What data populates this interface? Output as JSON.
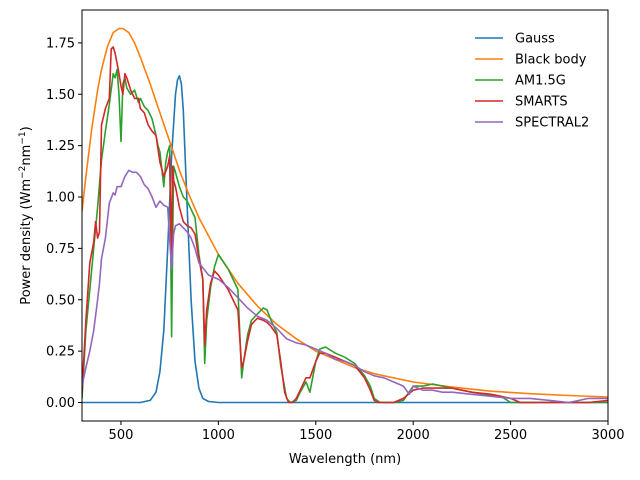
{
  "chart_data": {
    "type": "line",
    "title": "",
    "xlabel": "Wavelength (nm)",
    "ylabel_main": "Power density (Wm",
    "ylabel_sup1": "−2",
    "ylabel_mid": "nm",
    "ylabel_sup2": "−1",
    "ylabel_end": ")",
    "xlim": [
      300,
      3000
    ],
    "ylim": [
      -0.09,
      1.91
    ],
    "xticks": [
      500,
      1000,
      1500,
      2000,
      2500,
      3000
    ],
    "xtick_labels": [
      "500",
      "1000",
      "1500",
      "2000",
      "2500",
      "3000"
    ],
    "yticks": [
      0.0,
      0.25,
      0.5,
      0.75,
      1.0,
      1.25,
      1.5,
      1.75
    ],
    "ytick_labels": [
      "0.00",
      "0.25",
      "0.50",
      "0.75",
      "1.00",
      "1.25",
      "1.50",
      "1.75"
    ],
    "grid": false,
    "legend_position": "top-right",
    "series": [
      {
        "name": "Gauss",
        "color": "#1f77b4",
        "x": [
          300,
          550,
          600,
          650,
          680,
          700,
          720,
          740,
          760,
          780,
          790,
          800,
          810,
          820,
          840,
          860,
          880,
          900,
          920,
          950,
          1000,
          1500,
          2000,
          2500,
          3000
        ],
        "y": [
          0,
          0,
          0,
          0.01,
          0.05,
          0.15,
          0.35,
          0.75,
          1.2,
          1.5,
          1.57,
          1.59,
          1.55,
          1.42,
          0.95,
          0.5,
          0.2,
          0.07,
          0.02,
          0.005,
          0,
          0,
          0,
          0,
          0
        ]
      },
      {
        "name": "Black body",
        "color": "#ff7f0e",
        "x": [
          300,
          320,
          350,
          380,
          400,
          430,
          460,
          490,
          510,
          540,
          570,
          600,
          650,
          700,
          750,
          800,
          850,
          900,
          1000,
          1100,
          1200,
          1300,
          1400,
          1500,
          1600,
          1700,
          1800,
          2000,
          2200,
          2400,
          2600,
          2800,
          3000
        ],
        "y": [
          0.93,
          1.1,
          1.33,
          1.52,
          1.62,
          1.73,
          1.8,
          1.82,
          1.82,
          1.8,
          1.75,
          1.68,
          1.55,
          1.41,
          1.27,
          1.13,
          1.01,
          0.9,
          0.72,
          0.58,
          0.47,
          0.38,
          0.31,
          0.25,
          0.21,
          0.17,
          0.14,
          0.1,
          0.075,
          0.055,
          0.043,
          0.034,
          0.027
        ]
      },
      {
        "name": "AM1.5G",
        "color": "#2ca02c",
        "x": [
          300,
          320,
          340,
          360,
          380,
          400,
          420,
          440,
          460,
          470,
          480,
          490,
          500,
          510,
          520,
          530,
          550,
          570,
          590,
          600,
          620,
          640,
          660,
          680,
          690,
          700,
          720,
          730,
          740,
          750,
          760,
          770,
          780,
          800,
          820,
          840,
          860,
          880,
          900,
          920,
          930,
          940,
          960,
          980,
          1000,
          1050,
          1100,
          1120,
          1130,
          1150,
          1170,
          1200,
          1230,
          1250,
          1270,
          1300,
          1320,
          1350,
          1370,
          1400,
          1420,
          1450,
          1470,
          1490,
          1500,
          1520,
          1550,
          1600,
          1650,
          1700,
          1750,
          1780,
          1800,
          1830,
          1850,
          1900,
          1950,
          2000,
          2050,
          2100,
          2150,
          2200,
          2300,
          2400,
          2450,
          2500,
          2600,
          2700,
          2800,
          2900,
          3000
        ],
        "y": [
          0.02,
          0.35,
          0.55,
          0.75,
          0.95,
          1.18,
          1.32,
          1.45,
          1.6,
          1.58,
          1.62,
          1.5,
          1.27,
          1.55,
          1.58,
          1.53,
          1.5,
          1.52,
          1.46,
          1.48,
          1.44,
          1.42,
          1.38,
          1.3,
          1.25,
          1.22,
          1.05,
          1.17,
          1.22,
          1.25,
          0.32,
          1.15,
          1.12,
          1.05,
          1.0,
          0.98,
          0.94,
          0.9,
          0.72,
          0.6,
          0.19,
          0.4,
          0.56,
          0.66,
          0.72,
          0.65,
          0.55,
          0.12,
          0.2,
          0.33,
          0.4,
          0.43,
          0.46,
          0.45,
          0.4,
          0.34,
          0.18,
          0.02,
          0,
          0.01,
          0.05,
          0.1,
          0.05,
          0.15,
          0.2,
          0.26,
          0.27,
          0.24,
          0.22,
          0.19,
          0.13,
          0.08,
          0.02,
          0.0,
          0.0,
          0.0,
          0.01,
          0.08,
          0.08,
          0.09,
          0.08,
          0.07,
          0.05,
          0.035,
          0.03,
          0.0,
          0.0,
          0.0,
          0.0,
          0.0,
          0.0
        ]
      },
      {
        "name": "SMARTS",
        "color": "#d62728",
        "x": [
          300,
          320,
          340,
          360,
          370,
          380,
          390,
          400,
          420,
          440,
          450,
          460,
          470,
          480,
          490,
          500,
          510,
          520,
          530,
          550,
          570,
          590,
          600,
          620,
          640,
          660,
          680,
          700,
          720,
          740,
          750,
          760,
          765,
          770,
          780,
          800,
          820,
          840,
          860,
          880,
          900,
          920,
          930,
          940,
          960,
          980,
          1000,
          1050,
          1100,
          1120,
          1130,
          1150,
          1170,
          1200,
          1230,
          1250,
          1270,
          1300,
          1320,
          1340,
          1360,
          1380,
          1400,
          1420,
          1450,
          1470,
          1500,
          1520,
          1550,
          1600,
          1650,
          1700,
          1750,
          1780,
          1800,
          1820,
          1850,
          1900,
          1950,
          2000,
          2050,
          2100,
          2150,
          2200,
          2300,
          2400,
          2450,
          2500,
          2550,
          2600,
          2700,
          2800,
          2900,
          3000
        ],
        "y": [
          0.05,
          0.4,
          0.68,
          0.78,
          0.88,
          0.8,
          0.83,
          1.35,
          1.43,
          1.48,
          1.72,
          1.73,
          1.7,
          1.65,
          1.6,
          1.54,
          1.5,
          1.6,
          1.58,
          1.52,
          1.48,
          1.48,
          1.43,
          1.41,
          1.35,
          1.32,
          1.3,
          1.17,
          1.1,
          1.15,
          1.2,
          0.7,
          1.15,
          1.08,
          1.05,
          0.95,
          0.88,
          0.86,
          0.85,
          0.82,
          0.7,
          0.6,
          0.28,
          0.45,
          0.58,
          0.64,
          0.62,
          0.55,
          0.45,
          0.17,
          0.2,
          0.3,
          0.38,
          0.41,
          0.4,
          0.39,
          0.37,
          0.33,
          0.2,
          0.05,
          0.0,
          0.0,
          0.02,
          0.06,
          0.12,
          0.12,
          0.2,
          0.24,
          0.24,
          0.22,
          0.2,
          0.18,
          0.12,
          0.06,
          0.01,
          0.0,
          0.0,
          0.0,
          0.02,
          0.06,
          0.07,
          0.07,
          0.07,
          0.07,
          0.05,
          0.04,
          0.03,
          0.02,
          0.0,
          0.0,
          0.0,
          0.0,
          0.0,
          0.01
        ]
      },
      {
        "name": "SPECTRAL2",
        "color": "#9467bd",
        "x": [
          300,
          320,
          340,
          360,
          380,
          390,
          400,
          420,
          440,
          460,
          470,
          480,
          500,
          520,
          540,
          560,
          580,
          600,
          620,
          640,
          660,
          680,
          700,
          720,
          740,
          760,
          770,
          780,
          800,
          820,
          840,
          860,
          880,
          900,
          950,
          1000,
          1050,
          1100,
          1150,
          1200,
          1250,
          1300,
          1350,
          1400,
          1450,
          1500,
          1550,
          1600,
          1650,
          1700,
          1750,
          1800,
          1850,
          1900,
          1950,
          1980,
          2000,
          2050,
          2100,
          2150,
          2200,
          2300,
          2400,
          2500,
          2600,
          2700,
          2800,
          2900,
          3000
        ],
        "y": [
          0.08,
          0.17,
          0.25,
          0.35,
          0.5,
          0.58,
          0.7,
          0.8,
          0.97,
          1.02,
          1.01,
          1.05,
          1.05,
          1.1,
          1.13,
          1.12,
          1.12,
          1.1,
          1.06,
          1.04,
          1.0,
          0.95,
          0.98,
          0.96,
          0.95,
          0.65,
          0.82,
          0.86,
          0.87,
          0.85,
          0.83,
          0.8,
          0.75,
          0.68,
          0.62,
          0.6,
          0.56,
          0.51,
          0.46,
          0.42,
          0.4,
          0.36,
          0.31,
          0.29,
          0.28,
          0.26,
          0.24,
          0.21,
          0.2,
          0.18,
          0.15,
          0.13,
          0.12,
          0.1,
          0.08,
          0.04,
          0.08,
          0.06,
          0.06,
          0.05,
          0.05,
          0.04,
          0.03,
          0.02,
          0.02,
          0.01,
          0.0,
          0.02,
          0.02
        ]
      }
    ]
  }
}
